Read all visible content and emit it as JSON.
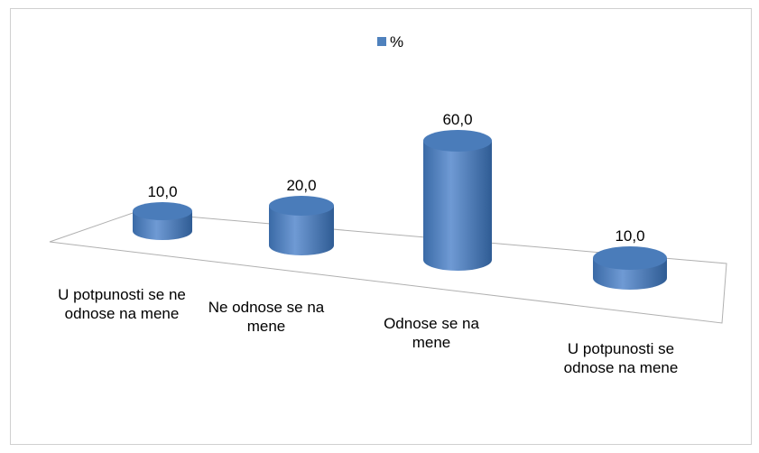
{
  "chart_data": {
    "type": "bar3d",
    "categories": [
      "U potpunosti se ne odnose na mene",
      "Ne odnose se na mene",
      "Odnose se na mene",
      "U potpunosti se odnose na mene"
    ],
    "series": [
      {
        "name": "%",
        "color": "#4f81bd",
        "values": [
          10,
          20,
          60,
          10
        ],
        "value_labels": [
          "10,0",
          "20,0",
          "60,0",
          "10,0"
        ]
      }
    ],
    "legend": "top"
  }
}
